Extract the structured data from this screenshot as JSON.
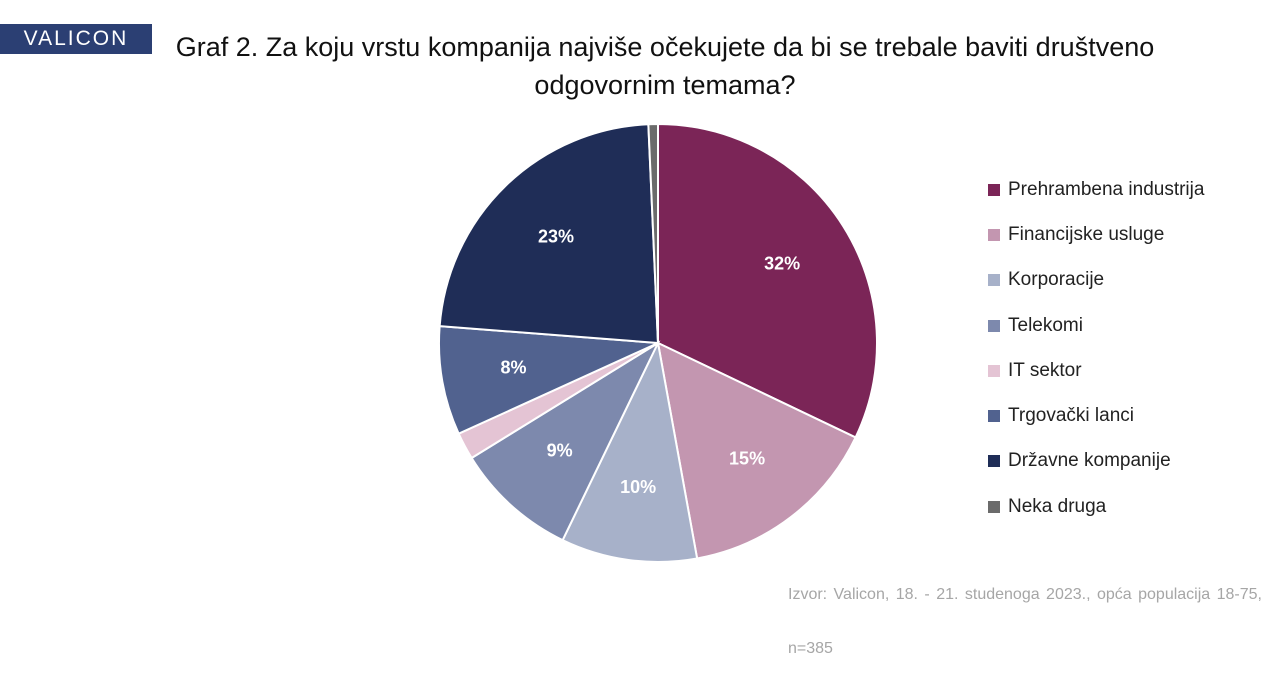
{
  "header": {
    "logo_text": "VALICON",
    "title": "Graf 2. Za koju vrstu kompanija najviše očekujete da bi se trebale baviti društveno odgovornim temama?"
  },
  "chart_data": {
    "type": "pie",
    "title": "Graf 2. Za koju vrstu kompanija najviše očekujete da bi se trebale baviti društveno odgovornim temama?",
    "legend_position": "right",
    "slices": [
      {
        "label": "Prehrambena industrija",
        "value": 32,
        "display": "32%",
        "color": "#7b2557"
      },
      {
        "label": "Financijske usluge",
        "value": 15,
        "display": "15%",
        "color": "#c396b0"
      },
      {
        "label": "Korporacije",
        "value": 10,
        "display": "10%",
        "color": "#a7b1c9"
      },
      {
        "label": "Telekomi",
        "value": 9,
        "display": "9%",
        "color": "#7d89ad"
      },
      {
        "label": "IT sektor",
        "value": 2,
        "display": "",
        "color": "#e4c4d4"
      },
      {
        "label": "Trgovački lanci",
        "value": 8,
        "display": "8%",
        "color": "#51628f"
      },
      {
        "label": "Državne kompanije",
        "value": 23,
        "display": "23%",
        "color": "#1f2d57"
      },
      {
        "label": "Neka druga",
        "value": 0.7,
        "display": "",
        "color": "#6b6b6b"
      }
    ]
  },
  "source_text": "Izvor: Valicon, 18. - 21. studenoga 2023., opća populacija 18-75, n=385"
}
